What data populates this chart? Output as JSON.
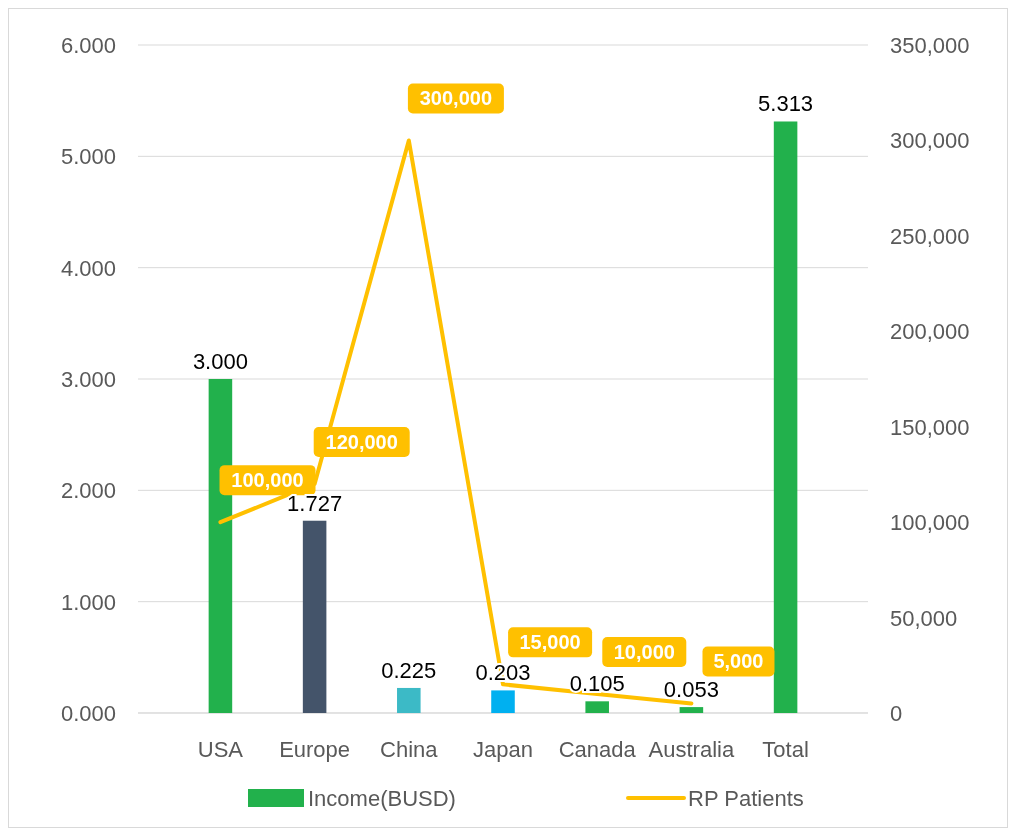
{
  "chart_data": {
    "type": "bar",
    "categories": [
      "USA",
      "Europe",
      "China",
      "Japan",
      "Canada",
      "Australia",
      "Total"
    ],
    "series": [
      {
        "name": "Income(BUSD)",
        "colors": [
          "#22b14c",
          "#44546a",
          "#3cbac6",
          "#00b0f0",
          "#22b14c",
          "#22b14c",
          "#22b14c"
        ],
        "color": "#22b14c",
        "values": [
          3.0,
          1.727,
          0.225,
          0.203,
          0.105,
          0.053,
          5.313
        ],
        "value_labels": [
          "3.000",
          "1.727",
          "0.225",
          "0.203",
          "0.105",
          "0.053",
          "5.313"
        ]
      },
      {
        "name": "RP Patients",
        "type": "line",
        "axis": "y2",
        "color": "#ffc000",
        "values": [
          100000,
          120000,
          300000,
          15000,
          10000,
          5000,
          null
        ],
        "value_labels": [
          "100,000",
          "120,000",
          "300,000",
          "15,000",
          "10,000",
          "5,000",
          null
        ]
      }
    ],
    "ylim": [
      0,
      6
    ],
    "yticks": [
      {
        "value": 0,
        "label": "0.000"
      },
      {
        "value": 1,
        "label": "1.000"
      },
      {
        "value": 2,
        "label": "2.000"
      },
      {
        "value": 3,
        "label": "3.000"
      },
      {
        "value": 4,
        "label": "4.000"
      },
      {
        "value": 5,
        "label": "5.000"
      },
      {
        "value": 6,
        "label": "6.000"
      }
    ],
    "y2lim": [
      0,
      350000
    ],
    "y2ticks": [
      {
        "value": 0,
        "label": "0"
      },
      {
        "value": 50000,
        "label": "50,000"
      },
      {
        "value": 100000,
        "label": "100,000"
      },
      {
        "value": 150000,
        "label": "150,000"
      },
      {
        "value": 200000,
        "label": "200,000"
      },
      {
        "value": 250000,
        "label": "250,000"
      },
      {
        "value": 300000,
        "label": "300,000"
      },
      {
        "value": 350000,
        "label": "350,000"
      }
    ],
    "grid": "y",
    "legend": "bottom",
    "marker": "none",
    "line_style": "solid"
  }
}
